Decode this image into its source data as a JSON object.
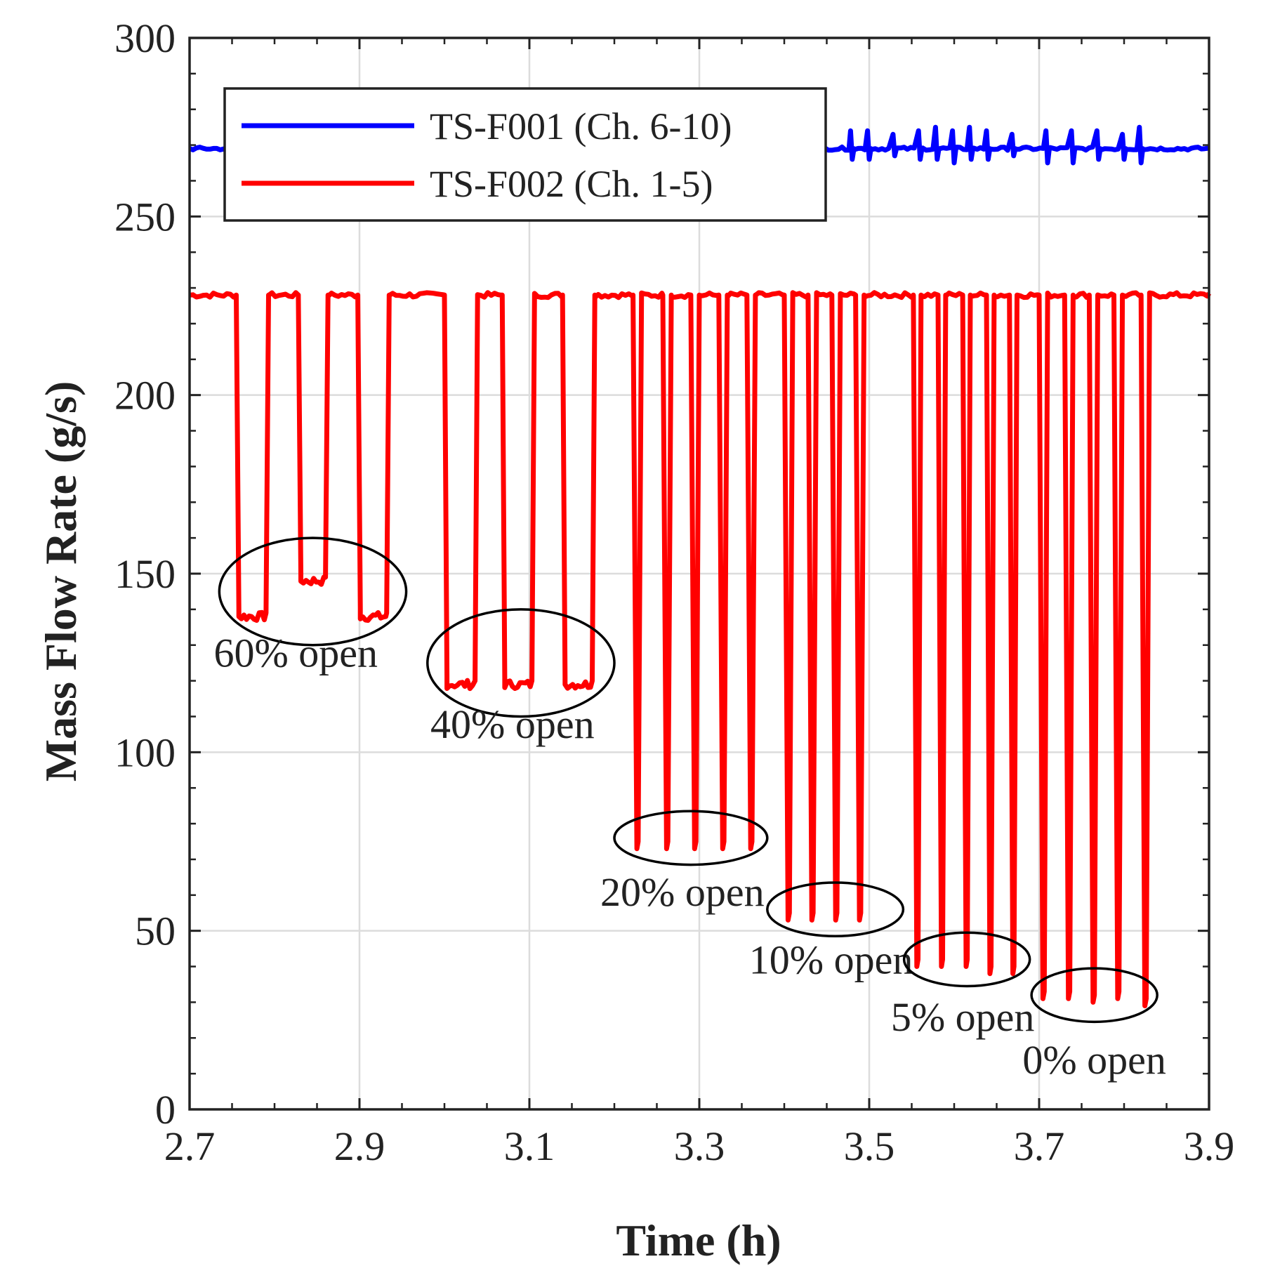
{
  "chart_data": {
    "type": "line",
    "title": "",
    "xlabel": "Time (h)",
    "ylabel": "Mass Flow Rate (g/s)",
    "xlim": [
      2.7,
      3.9
    ],
    "ylim": [
      0,
      300
    ],
    "xticks": [
      "2.7",
      "2.9",
      "3.1",
      "3.3",
      "3.5",
      "3.7",
      "3.9"
    ],
    "yticks": [
      "0",
      "50",
      "100",
      "150",
      "200",
      "250",
      "300"
    ],
    "xtick_values": [
      2.7,
      2.9,
      3.1,
      3.3,
      3.5,
      3.7,
      3.9
    ],
    "ytick_values": [
      0,
      50,
      100,
      150,
      200,
      250,
      300
    ],
    "grid": true,
    "legend_position": "top-left",
    "series": [
      {
        "name": "TS-F001 (Ch. 6-10)",
        "color": "#0000ff",
        "baseline": 269,
        "spikes": [
          {
            "x": 3.48,
            "hi": 274,
            "lo": 266
          },
          {
            "x": 3.5,
            "hi": 274,
            "lo": 266
          },
          {
            "x": 3.53,
            "hi": 273,
            "lo": 267
          },
          {
            "x": 3.56,
            "hi": 274,
            "lo": 266
          },
          {
            "x": 3.58,
            "hi": 275,
            "lo": 266
          },
          {
            "x": 3.6,
            "hi": 274,
            "lo": 265
          },
          {
            "x": 3.62,
            "hi": 275,
            "lo": 266
          },
          {
            "x": 3.64,
            "hi": 274,
            "lo": 266
          },
          {
            "x": 3.67,
            "hi": 273,
            "lo": 267
          },
          {
            "x": 3.71,
            "hi": 274,
            "lo": 265
          },
          {
            "x": 3.74,
            "hi": 274,
            "lo": 265
          },
          {
            "x": 3.77,
            "hi": 274,
            "lo": 266
          },
          {
            "x": 3.8,
            "hi": 273,
            "lo": 266
          },
          {
            "x": 3.82,
            "hi": 275,
            "lo": 265
          }
        ]
      },
      {
        "name": "TS-F002 (Ch. 1-5)",
        "color": "#ff0000",
        "baseline": 228,
        "dips": [
          {
            "start": 2.755,
            "end": 2.793,
            "low": 138
          },
          {
            "start": 2.828,
            "end": 2.863,
            "low": 148
          },
          {
            "start": 2.898,
            "end": 2.935,
            "low": 138
          },
          {
            "start": 3.0,
            "end": 3.039,
            "low": 119
          },
          {
            "start": 3.068,
            "end": 3.106,
            "low": 119
          },
          {
            "start": 3.139,
            "end": 3.177,
            "low": 119
          },
          {
            "start": 3.222,
            "end": 3.232,
            "low": 73
          },
          {
            "start": 3.257,
            "end": 3.267,
            "low": 73
          },
          {
            "start": 3.29,
            "end": 3.3,
            "low": 73
          },
          {
            "start": 3.323,
            "end": 3.333,
            "low": 73
          },
          {
            "start": 3.356,
            "end": 3.366,
            "low": 73
          },
          {
            "start": 3.4,
            "end": 3.41,
            "low": 53
          },
          {
            "start": 3.428,
            "end": 3.438,
            "low": 53
          },
          {
            "start": 3.456,
            "end": 3.466,
            "low": 53
          },
          {
            "start": 3.484,
            "end": 3.494,
            "low": 53
          },
          {
            "start": 3.552,
            "end": 3.561,
            "low": 40
          },
          {
            "start": 3.581,
            "end": 3.59,
            "low": 40
          },
          {
            "start": 3.61,
            "end": 3.619,
            "low": 40
          },
          {
            "start": 3.638,
            "end": 3.647,
            "low": 38
          },
          {
            "start": 3.665,
            "end": 3.674,
            "low": 38
          },
          {
            "start": 3.7,
            "end": 3.71,
            "low": 31
          },
          {
            "start": 3.73,
            "end": 3.74,
            "low": 31
          },
          {
            "start": 3.759,
            "end": 3.769,
            "low": 30
          },
          {
            "start": 3.788,
            "end": 3.798,
            "low": 31
          },
          {
            "start": 3.82,
            "end": 3.83,
            "low": 29
          }
        ]
      }
    ],
    "annotations": [
      {
        "text": "60% open",
        "cx": 2.845,
        "cy": 145,
        "rx": 0.11,
        "ry": 15,
        "tx": 2.825,
        "ty": 124
      },
      {
        "text": "40% open",
        "cx": 3.09,
        "cy": 125,
        "rx": 0.11,
        "ry": 15,
        "tx": 3.08,
        "ty": 104
      },
      {
        "text": "20% open",
        "cx": 3.29,
        "cy": 76,
        "rx": 0.09,
        "ry": 7.5,
        "tx": 3.28,
        "ty": 57
      },
      {
        "text": "10% open",
        "cx": 3.46,
        "cy": 56,
        "rx": 0.08,
        "ry": 7.5,
        "tx": 3.455,
        "ty": 38
      },
      {
        "text": "5% open",
        "cx": 3.615,
        "cy": 42,
        "rx": 0.074,
        "ry": 7.5,
        "tx": 3.61,
        "ty": 22
      },
      {
        "text": "0% open",
        "cx": 3.765,
        "cy": 32,
        "rx": 0.074,
        "ry": 7.5,
        "tx": 3.765,
        "ty": 10
      }
    ]
  }
}
